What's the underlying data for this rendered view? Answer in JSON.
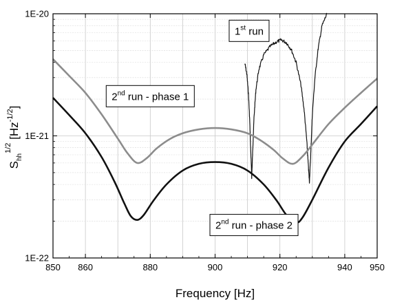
{
  "chart_data": {
    "type": "line",
    "scale": {
      "y": "log"
    },
    "xlabel": "Frequency  [Hz]",
    "ylabel": {
      "main": "S",
      "sub": "hh",
      "sup": "1/2",
      "unit": "[Hz",
      "unit_sup": "-1/2",
      "unit_close": "]"
    },
    "xlim": [
      850,
      950
    ],
    "ylim": [
      1e-22,
      1e-20
    ],
    "x_ticks": [
      {
        "value": 850,
        "label": "850"
      },
      {
        "value": 860,
        "label": "860"
      },
      {
        "value": 880,
        "label": "880"
      },
      {
        "value": 900,
        "label": "900"
      },
      {
        "value": 920,
        "label": "920"
      },
      {
        "value": 940,
        "label": "940"
      },
      {
        "value": 950,
        "label": "950"
      }
    ],
    "y_ticks": [
      {
        "value": 1e-22,
        "label": "1E-22"
      },
      {
        "value": 1e-21,
        "label": "1E-21"
      },
      {
        "value": 1e-20,
        "label": "1E-20"
      }
    ],
    "grid": true,
    "annotations": [
      {
        "id": "run1",
        "parts": [
          "1",
          "st",
          " run"
        ],
        "x": 910.5,
        "y": 7.2e-21
      },
      {
        "id": "run2p1",
        "parts": [
          "2",
          "nd",
          " run - phase 1"
        ],
        "x": 880,
        "y": 2.1e-21
      },
      {
        "id": "run2p2",
        "parts": [
          "2",
          "nd",
          " run - phase 2"
        ],
        "x": 912,
        "y": 1.85e-22
      }
    ],
    "series": [
      {
        "id": "run1",
        "color": "#111111",
        "style": "noisy",
        "points": [
          [
            909.2,
            3.9e-21
          ],
          [
            909.8,
            3.2e-21
          ],
          [
            910.3,
            2.2e-21
          ],
          [
            910.7,
            1.3e-21
          ],
          [
            911.0,
            7.5e-22
          ],
          [
            911.3,
            4.6e-22
          ],
          [
            911.6,
            7.5e-22
          ],
          [
            912.0,
            1.4e-21
          ],
          [
            912.6,
            2.4e-21
          ],
          [
            913.5,
            3.5e-21
          ],
          [
            915.0,
            4.6e-21
          ],
          [
            917.0,
            5.4e-21
          ],
          [
            919.0,
            5.9e-21
          ],
          [
            920.5,
            6.1e-21
          ],
          [
            922.0,
            5.8e-21
          ],
          [
            923.5,
            5.1e-21
          ],
          [
            925.0,
            4e-21
          ],
          [
            926.5,
            2.6e-21
          ],
          [
            927.5,
            1.6e-21
          ],
          [
            928.3,
            9e-22
          ],
          [
            928.8,
            5.5e-22
          ],
          [
            929.1,
            4.2e-22
          ],
          [
            929.5,
            7e-22
          ],
          [
            930.0,
            1.5e-21
          ],
          [
            930.8,
            3e-21
          ],
          [
            931.8,
            5.2e-21
          ],
          [
            933.0,
            8e-21
          ],
          [
            934.5,
            1e-20
          ]
        ]
      },
      {
        "id": "run2_phase1",
        "color": "#8c8c8c",
        "style": "smooth",
        "points": [
          [
            850,
            4.25e-21
          ],
          [
            855,
            3.1e-21
          ],
          [
            860,
            2.25e-21
          ],
          [
            865,
            1.5e-21
          ],
          [
            870,
            9.5e-22
          ],
          [
            873,
            7.2e-22
          ],
          [
            876,
            6e-22
          ],
          [
            879,
            6.6e-22
          ],
          [
            882,
            7.9e-22
          ],
          [
            886,
            9.4e-22
          ],
          [
            890,
            1.05e-21
          ],
          [
            895,
            1.13e-21
          ],
          [
            900,
            1.16e-21
          ],
          [
            905,
            1.13e-21
          ],
          [
            910,
            1.05e-21
          ],
          [
            914,
            9.2e-22
          ],
          [
            918,
            7.7e-22
          ],
          [
            921,
            6.5e-22
          ],
          [
            924,
            5.9e-22
          ],
          [
            927,
            6.8e-22
          ],
          [
            930,
            8.5e-22
          ],
          [
            935,
            1.25e-21
          ],
          [
            940,
            1.7e-21
          ],
          [
            945,
            2.25e-21
          ],
          [
            950,
            2.95e-21
          ]
        ]
      },
      {
        "id": "run2_phase2",
        "color": "#111111",
        "style": "smooth",
        "points": [
          [
            850,
            2.05e-21
          ],
          [
            855,
            1.48e-21
          ],
          [
            860,
            1.05e-21
          ],
          [
            865,
            6.7e-22
          ],
          [
            869,
            4.2e-22
          ],
          [
            872,
            2.8e-22
          ],
          [
            874,
            2.2e-22
          ],
          [
            876,
            2.05e-22
          ],
          [
            878,
            2.25e-22
          ],
          [
            881,
            2.95e-22
          ],
          [
            885,
            4e-22
          ],
          [
            890,
            5.2e-22
          ],
          [
            895,
            5.9e-22
          ],
          [
            900,
            6.1e-22
          ],
          [
            905,
            5.9e-22
          ],
          [
            910,
            5.2e-22
          ],
          [
            915,
            4e-22
          ],
          [
            919,
            2.95e-22
          ],
          [
            922,
            2.25e-22
          ],
          [
            925,
            1.95e-22
          ],
          [
            927,
            2.15e-22
          ],
          [
            930,
            3e-22
          ],
          [
            935,
            5.5e-22
          ],
          [
            940,
            9e-22
          ],
          [
            945,
            1.25e-21
          ],
          [
            950,
            1.75e-21
          ]
        ]
      }
    ]
  }
}
